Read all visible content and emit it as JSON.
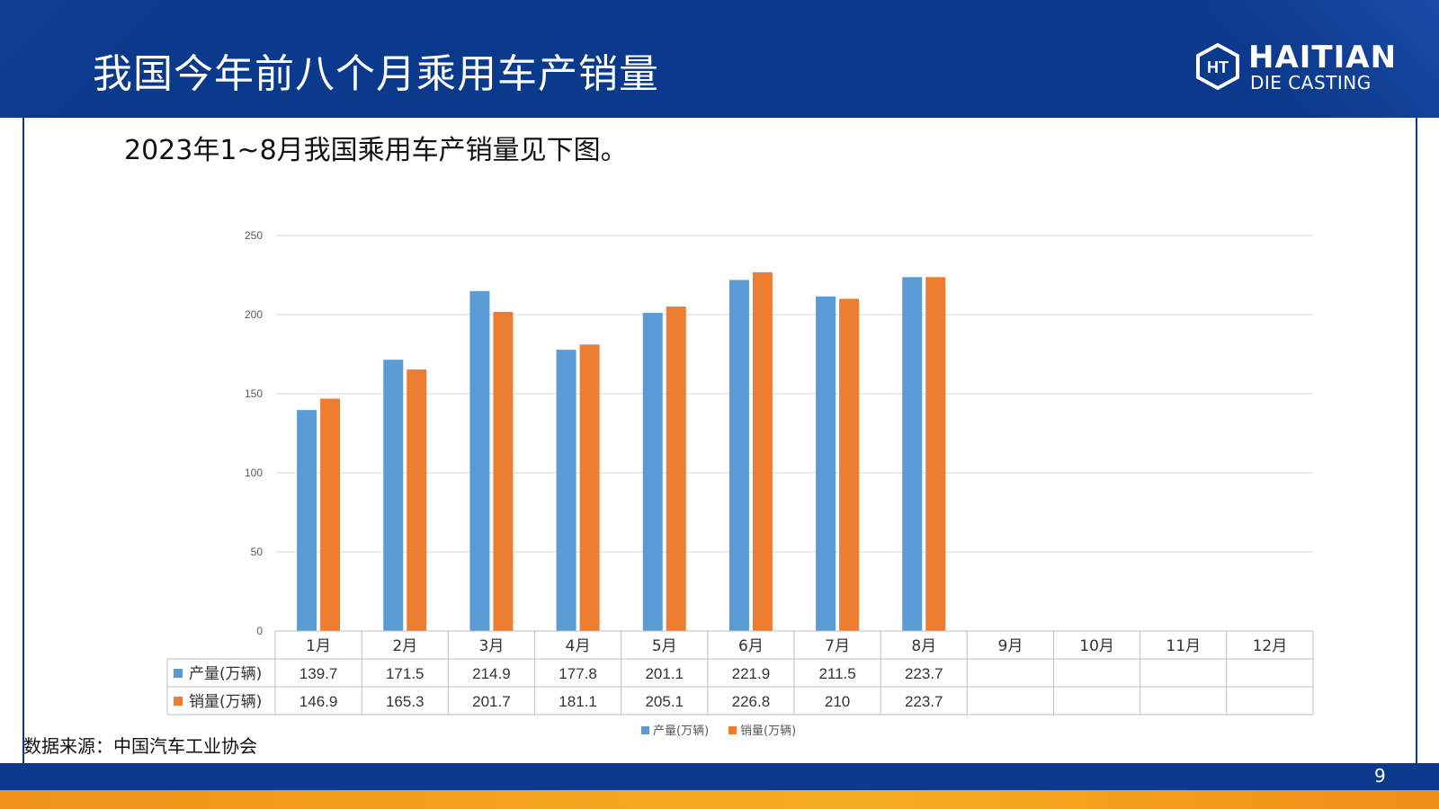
{
  "header": {
    "title": "我国今年前八个月乘用车产销量",
    "brand_name": "HAITIAN",
    "brand_sub": "DIE CASTING",
    "brand_badge": "HT"
  },
  "intro_text": "2023年1~8月我国乘用车产销量见下图。",
  "source_text": "数据来源：中国汽车工业协会",
  "page_number": "9",
  "colors": {
    "header_blue": "#0b3a8c",
    "production": "#5b9bd5",
    "sales": "#ed7d31",
    "grid": "#d9d9d9"
  },
  "chart_data": {
    "type": "bar",
    "categories": [
      "1月",
      "2月",
      "3月",
      "4月",
      "5月",
      "6月",
      "7月",
      "8月",
      "9月",
      "10月",
      "11月",
      "12月"
    ],
    "series": [
      {
        "name": "产量(万辆)",
        "values": [
          139.7,
          171.5,
          214.9,
          177.8,
          201.1,
          221.9,
          211.5,
          223.7,
          null,
          null,
          null,
          null
        ],
        "labels": [
          "139.7",
          "171.5",
          "214.9",
          "177.8",
          "201.1",
          "221.9",
          "211.5",
          "223.7",
          "",
          "",
          "",
          ""
        ]
      },
      {
        "name": "销量(万辆)",
        "values": [
          146.9,
          165.3,
          201.7,
          181.1,
          205.1,
          226.8,
          210,
          223.7,
          null,
          null,
          null,
          null
        ],
        "labels": [
          "146.9",
          "165.3",
          "201.7",
          "181.1",
          "205.1",
          "226.8",
          "210",
          "223.7",
          "",
          "",
          "",
          ""
        ]
      }
    ],
    "yticks": [
      "0",
      "50",
      "100",
      "150",
      "200",
      "250"
    ],
    "ylim": [
      0,
      250
    ],
    "grid": true,
    "legend": "bottom",
    "data_table": true
  }
}
